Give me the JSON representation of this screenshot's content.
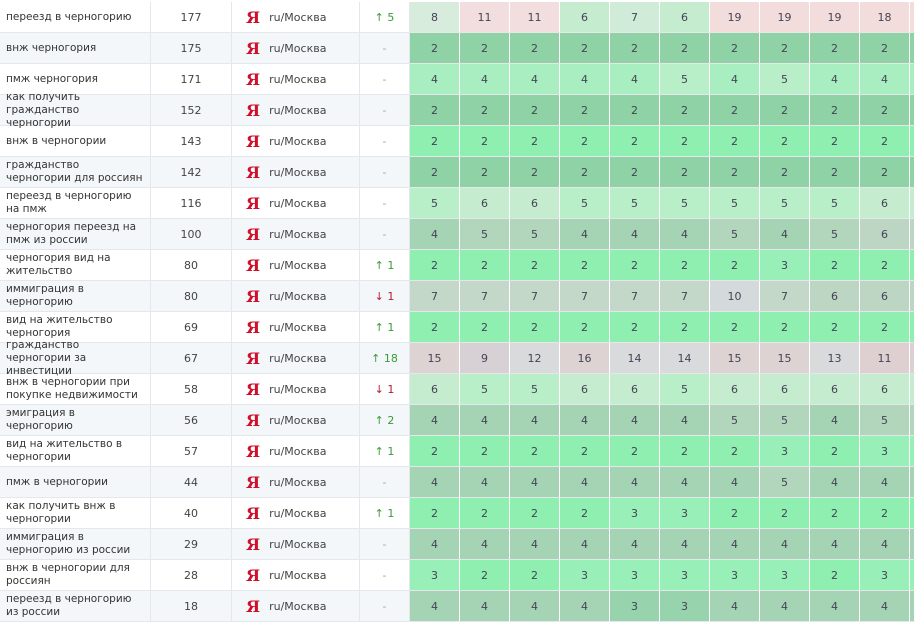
{
  "region_label": "ru/Москва",
  "engine_icon": "yandex-icon",
  "engine_glyph": "Я",
  "colors": {
    "up": "#3a9a3a",
    "down": "#b02030",
    "yandex": "#d0102a"
  },
  "rows": [
    {
      "keyword": "переезд в черногорию",
      "volume": "177",
      "change": "↑ 5",
      "dir": "up",
      "positions": [
        8,
        11,
        11,
        6,
        7,
        6,
        19,
        19,
        19,
        18
      ]
    },
    {
      "keyword": "внж черногория",
      "volume": "175",
      "change": "-",
      "dir": "none",
      "positions": [
        2,
        2,
        2,
        2,
        2,
        2,
        2,
        2,
        2,
        2
      ]
    },
    {
      "keyword": "пмж черногория",
      "volume": "171",
      "change": "-",
      "dir": "none",
      "positions": [
        4,
        4,
        4,
        4,
        4,
        5,
        4,
        5,
        4,
        4
      ]
    },
    {
      "keyword": "как получить гражданство черногории",
      "volume": "152",
      "change": "-",
      "dir": "none",
      "positions": [
        2,
        2,
        2,
        2,
        2,
        2,
        2,
        2,
        2,
        2
      ]
    },
    {
      "keyword": "внж в черногории",
      "volume": "143",
      "change": "-",
      "dir": "none",
      "positions": [
        2,
        2,
        2,
        2,
        2,
        2,
        2,
        2,
        2,
        2
      ]
    },
    {
      "keyword": "гражданство черногории для россиян",
      "volume": "142",
      "change": "-",
      "dir": "none",
      "positions": [
        2,
        2,
        2,
        2,
        2,
        2,
        2,
        2,
        2,
        2
      ]
    },
    {
      "keyword": "переезд в черногорию на пмж",
      "volume": "116",
      "change": "-",
      "dir": "none",
      "positions": [
        5,
        6,
        6,
        5,
        5,
        5,
        5,
        5,
        5,
        6
      ]
    },
    {
      "keyword": "черногория переезд на пмж из россии",
      "volume": "100",
      "change": "-",
      "dir": "none",
      "positions": [
        4,
        5,
        5,
        4,
        4,
        4,
        5,
        4,
        5,
        6
      ]
    },
    {
      "keyword": "черногория вид на жительство",
      "volume": "80",
      "change": "↑ 1",
      "dir": "up",
      "positions": [
        2,
        2,
        2,
        2,
        2,
        2,
        2,
        3,
        2,
        2
      ]
    },
    {
      "keyword": "иммиграция в черногорию",
      "volume": "80",
      "change": "↓ 1",
      "dir": "down",
      "positions": [
        7,
        7,
        7,
        7,
        7,
        7,
        10,
        7,
        6,
        6
      ]
    },
    {
      "keyword": "вид на жительство черногория",
      "volume": "69",
      "change": "↑ 1",
      "dir": "up",
      "positions": [
        2,
        2,
        2,
        2,
        2,
        2,
        2,
        2,
        2,
        2
      ]
    },
    {
      "keyword": "гражданство черногории за инвестиции",
      "volume": "67",
      "change": "↑ 18",
      "dir": "up",
      "positions": [
        15,
        9,
        12,
        16,
        14,
        14,
        15,
        15,
        13,
        11
      ]
    },
    {
      "keyword": "внж в черногории при покупке недвижимости",
      "volume": "58",
      "change": "↓ 1",
      "dir": "down",
      "positions": [
        6,
        5,
        5,
        6,
        6,
        5,
        6,
        6,
        6,
        6
      ]
    },
    {
      "keyword": "эмиграция в черногорию",
      "volume": "56",
      "change": "↑ 2",
      "dir": "up",
      "positions": [
        4,
        4,
        4,
        4,
        4,
        4,
        5,
        5,
        4,
        5
      ]
    },
    {
      "keyword": "вид на жительство в черногории",
      "volume": "57",
      "change": "↑ 1",
      "dir": "up",
      "positions": [
        2,
        2,
        2,
        2,
        2,
        2,
        2,
        3,
        2,
        3
      ]
    },
    {
      "keyword": "пмж в черногории",
      "volume": "44",
      "change": "-",
      "dir": "none",
      "positions": [
        4,
        4,
        4,
        4,
        4,
        4,
        4,
        5,
        4,
        4
      ]
    },
    {
      "keyword": "как получить внж в черногории",
      "volume": "40",
      "change": "↑ 1",
      "dir": "up",
      "positions": [
        2,
        2,
        2,
        2,
        3,
        3,
        2,
        2,
        2,
        2
      ]
    },
    {
      "keyword": "иммиграция в черногорию из россии",
      "volume": "29",
      "change": "-",
      "dir": "none",
      "positions": [
        4,
        4,
        4,
        4,
        4,
        4,
        4,
        4,
        4,
        4
      ]
    },
    {
      "keyword": "внж в черногории для россиян",
      "volume": "28",
      "change": "-",
      "dir": "none",
      "positions": [
        3,
        2,
        2,
        3,
        3,
        3,
        3,
        3,
        2,
        3
      ]
    },
    {
      "keyword": "переезд в черногорию из россии",
      "volume": "18",
      "change": "-",
      "dir": "none",
      "positions": [
        4,
        4,
        4,
        4,
        3,
        3,
        4,
        4,
        4,
        4
      ]
    }
  ]
}
